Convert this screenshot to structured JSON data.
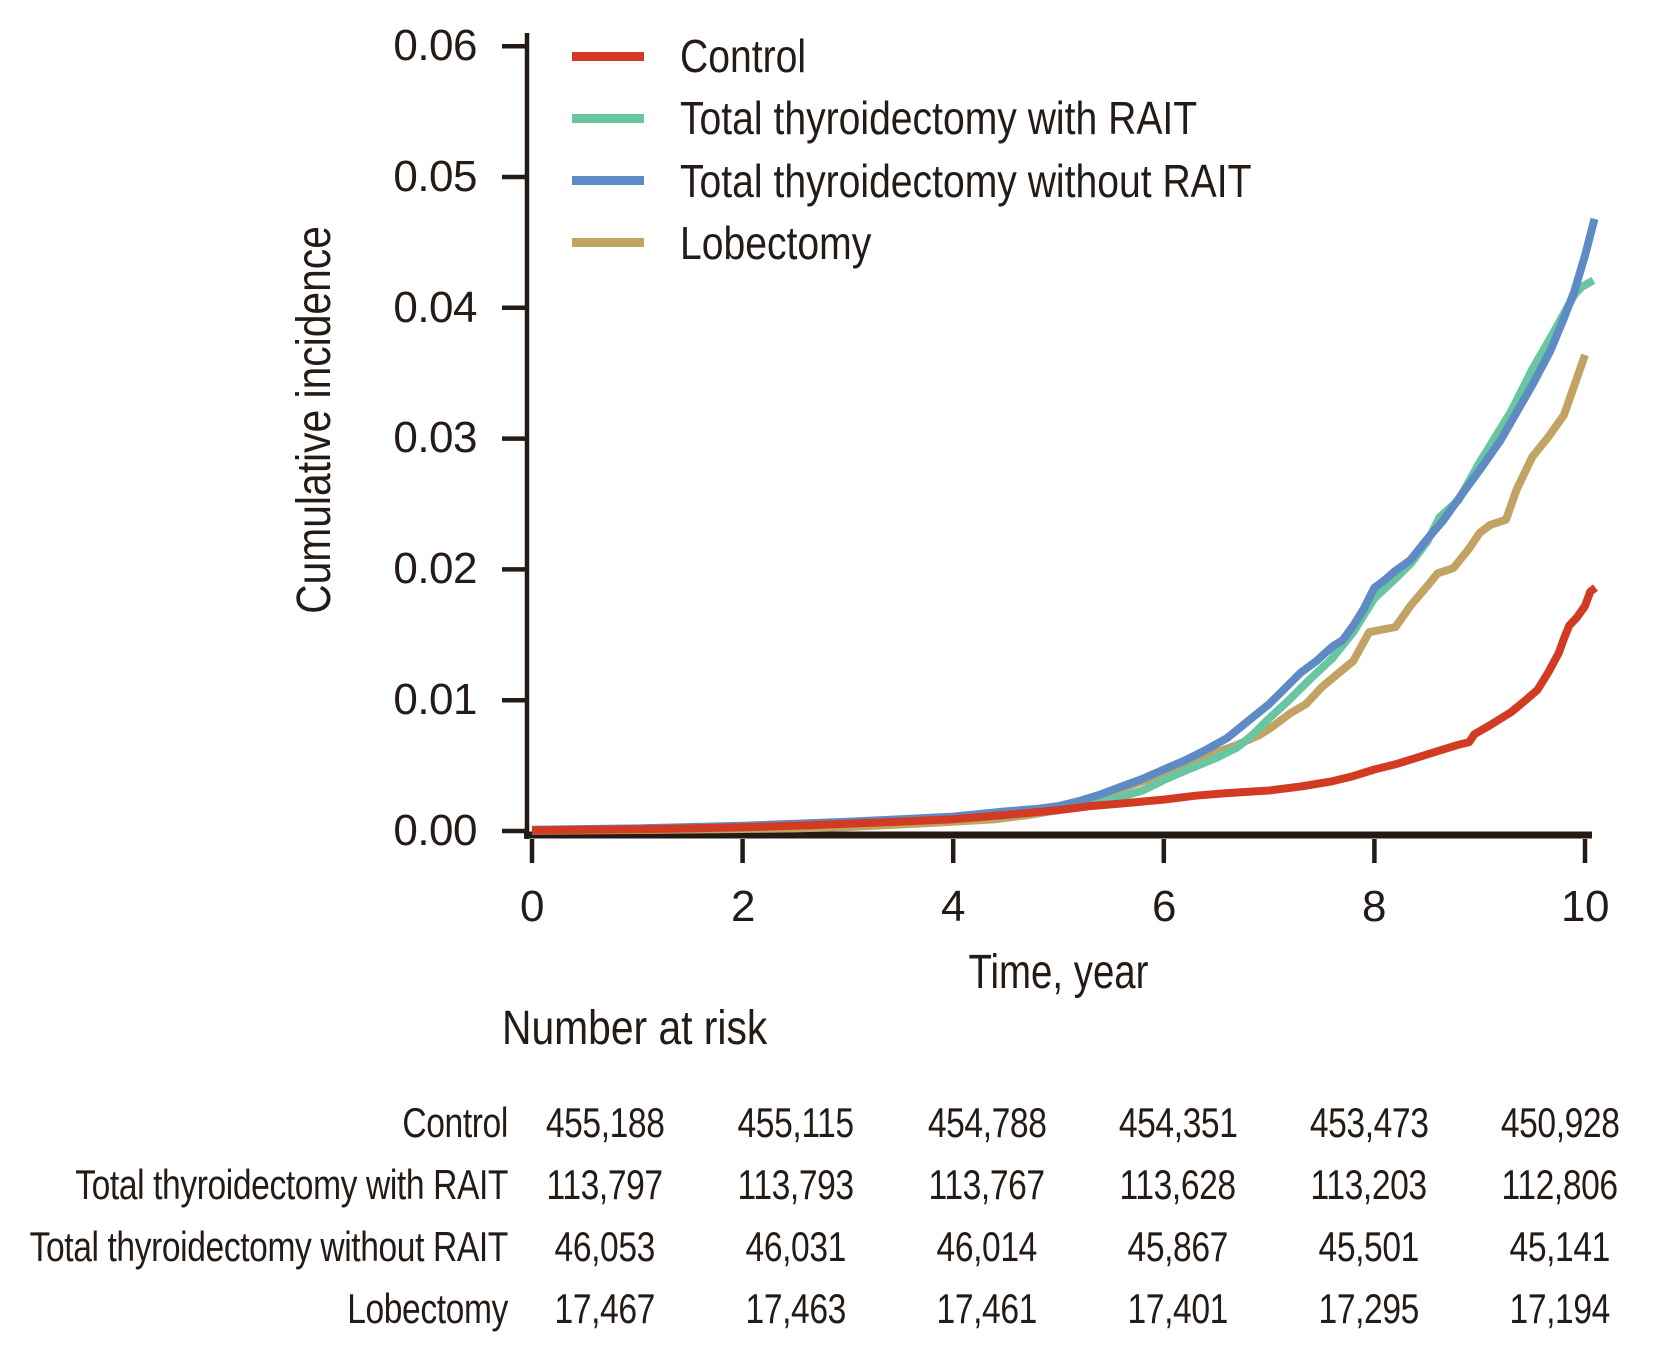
{
  "figure": {
    "ylabel": "Cumulative incidence",
    "xlabel": "Time, year",
    "y_tick_labels": [
      "0.06",
      "0.05",
      "0.04",
      "0.03",
      "0.02",
      "0.01",
      "0.00"
    ],
    "x_tick_labels": [
      "0",
      "2",
      "4",
      "6",
      "8",
      "10"
    ],
    "text_color": "#241b16",
    "background_color": "#ffffff"
  },
  "legend": {
    "items": [
      {
        "label": "Control"
      },
      {
        "label": "Total thyroidectomy with RAIT"
      },
      {
        "label": "Total thyroidectomy without RAIT"
      },
      {
        "label": "Lobectomy"
      }
    ]
  },
  "chart_data": {
    "type": "line",
    "title": "",
    "xlabel": "Time, year",
    "ylabel": "Cumulative incidence",
    "xlim": [
      0,
      10.2
    ],
    "ylim": [
      0,
      0.06
    ],
    "x_ticks": [
      0,
      2,
      4,
      6,
      8,
      10
    ],
    "y_ticks": [
      0,
      0.01,
      0.02,
      0.03,
      0.04,
      0.05,
      0.06
    ],
    "grid": false,
    "legend_position": "upper left",
    "draw_order": [
      3,
      1,
      2,
      0
    ],
    "series": [
      {
        "name": "Control",
        "color": "#d23b21",
        "points": [
          [
            0,
            5e-05
          ],
          [
            0.5,
            0.0001
          ],
          [
            1,
            0.00013
          ],
          [
            1.5,
            0.0002
          ],
          [
            2,
            0.00028
          ],
          [
            2.5,
            0.0004
          ],
          [
            3,
            0.00055
          ],
          [
            3.5,
            0.00072
          ],
          [
            4,
            0.0009
          ],
          [
            4.3,
            0.0011
          ],
          [
            4.6,
            0.0013
          ],
          [
            5,
            0.0016
          ],
          [
            5.3,
            0.0019
          ],
          [
            5.6,
            0.0021
          ],
          [
            6,
            0.0024
          ],
          [
            6.3,
            0.0027
          ],
          [
            6.6,
            0.0029
          ],
          [
            7,
            0.0031
          ],
          [
            7.3,
            0.0034
          ],
          [
            7.6,
            0.0038
          ],
          [
            7.8,
            0.0042
          ],
          [
            8,
            0.0047
          ],
          [
            8.2,
            0.0051
          ],
          [
            8.4,
            0.0056
          ],
          [
            8.6,
            0.0061
          ],
          [
            8.8,
            0.0066
          ],
          [
            8.9,
            0.0068
          ],
          [
            8.95,
            0.0074
          ],
          [
            9.1,
            0.0081
          ],
          [
            9.3,
            0.0091
          ],
          [
            9.45,
            0.0101
          ],
          [
            9.55,
            0.0108
          ],
          [
            9.65,
            0.0121
          ],
          [
            9.75,
            0.0136
          ],
          [
            9.8,
            0.0147
          ],
          [
            9.85,
            0.0157
          ],
          [
            9.92,
            0.0163
          ],
          [
            10,
            0.0172
          ],
          [
            10.05,
            0.0183
          ],
          [
            10.1,
            0.0186
          ]
        ]
      },
      {
        "name": "Total thyroidectomy with RAIT",
        "color": "#68c6a1",
        "points": [
          [
            0,
            8e-05
          ],
          [
            1,
            0.00018
          ],
          [
            2,
            0.0003
          ],
          [
            2.5,
            0.00045
          ],
          [
            3,
            0.0006
          ],
          [
            3.5,
            0.00075
          ],
          [
            4,
            0.0009
          ],
          [
            4.5,
            0.0012
          ],
          [
            5,
            0.0016
          ],
          [
            5.2,
            0.0019
          ],
          [
            5.5,
            0.0024
          ],
          [
            5.8,
            0.0031
          ],
          [
            6,
            0.0039
          ],
          [
            6.2,
            0.0046
          ],
          [
            6.5,
            0.0056
          ],
          [
            6.7,
            0.0064
          ],
          [
            6.85,
            0.0074
          ],
          [
            7,
            0.0086
          ],
          [
            7.2,
            0.0101
          ],
          [
            7.4,
            0.0117
          ],
          [
            7.6,
            0.0132
          ],
          [
            7.8,
            0.0152
          ],
          [
            8,
            0.0178
          ],
          [
            8.2,
            0.0193
          ],
          [
            8.35,
            0.0205
          ],
          [
            8.5,
            0.0221
          ],
          [
            8.62,
            0.024
          ],
          [
            8.8,
            0.0253
          ],
          [
            9,
            0.0282
          ],
          [
            9.07,
            0.0291
          ],
          [
            9.3,
            0.0321
          ],
          [
            9.5,
            0.0353
          ],
          [
            9.7,
            0.0381
          ],
          [
            9.83,
            0.04
          ],
          [
            9.9,
            0.041
          ],
          [
            9.97,
            0.0416
          ],
          [
            10.08,
            0.0421
          ]
        ]
      },
      {
        "name": "Total thyroidectomy without RAIT",
        "color": "#5f8bc5",
        "points": [
          [
            0,
            0.0001
          ],
          [
            1,
            0.0002
          ],
          [
            2,
            0.0004
          ],
          [
            2.5,
            0.00055
          ],
          [
            3,
            0.0007
          ],
          [
            3.5,
            0.0009
          ],
          [
            4,
            0.0011
          ],
          [
            4.5,
            0.0015
          ],
          [
            4.8,
            0.0017
          ],
          [
            5,
            0.0019
          ],
          [
            5.2,
            0.0023
          ],
          [
            5.4,
            0.0028
          ],
          [
            5.6,
            0.0034
          ],
          [
            5.8,
            0.004
          ],
          [
            6,
            0.0047
          ],
          [
            6.2,
            0.0054
          ],
          [
            6.4,
            0.0062
          ],
          [
            6.6,
            0.0071
          ],
          [
            6.8,
            0.0084
          ],
          [
            7,
            0.0097
          ],
          [
            7.15,
            0.0109
          ],
          [
            7.3,
            0.0121
          ],
          [
            7.45,
            0.013
          ],
          [
            7.6,
            0.0141
          ],
          [
            7.7,
            0.0146
          ],
          [
            7.8,
            0.0157
          ],
          [
            7.9,
            0.017
          ],
          [
            8,
            0.0186
          ],
          [
            8.1,
            0.0192
          ],
          [
            8.2,
            0.0199
          ],
          [
            8.34,
            0.0207
          ],
          [
            8.5,
            0.0223
          ],
          [
            8.65,
            0.0237
          ],
          [
            8.8,
            0.0254
          ],
          [
            9,
            0.0276
          ],
          [
            9.2,
            0.0299
          ],
          [
            9.35,
            0.032
          ],
          [
            9.5,
            0.0341
          ],
          [
            9.67,
            0.0367
          ],
          [
            9.8,
            0.0392
          ],
          [
            9.9,
            0.0413
          ],
          [
            10,
            0.044
          ],
          [
            10.09,
            0.0468
          ]
        ]
      },
      {
        "name": "Lobectomy",
        "color": "#c3a364",
        "points": [
          [
            0,
            2e-05
          ],
          [
            1,
            8e-05
          ],
          [
            2,
            0.00015
          ],
          [
            2.5,
            0.0002
          ],
          [
            3,
            0.0003
          ],
          [
            3.5,
            0.0005
          ],
          [
            4,
            0.0007
          ],
          [
            4.4,
            0.0009
          ],
          [
            4.7,
            0.0012
          ],
          [
            5,
            0.0016
          ],
          [
            5.2,
            0.0021
          ],
          [
            5.5,
            0.003
          ],
          [
            5.8,
            0.0038
          ],
          [
            6,
            0.0044
          ],
          [
            6.2,
            0.005
          ],
          [
            6.5,
            0.006
          ],
          [
            6.7,
            0.0066
          ],
          [
            6.9,
            0.0073
          ],
          [
            7,
            0.0078
          ],
          [
            7.2,
            0.009
          ],
          [
            7.35,
            0.0097
          ],
          [
            7.5,
            0.011
          ],
          [
            7.65,
            0.012
          ],
          [
            7.8,
            0.013
          ],
          [
            7.95,
            0.0152
          ],
          [
            8.2,
            0.0156
          ],
          [
            8.35,
            0.0173
          ],
          [
            8.5,
            0.0187
          ],
          [
            8.6,
            0.0197
          ],
          [
            8.75,
            0.0201
          ],
          [
            8.9,
            0.0216
          ],
          [
            9,
            0.0228
          ],
          [
            9.1,
            0.0234
          ],
          [
            9.25,
            0.0238
          ],
          [
            9.35,
            0.0261
          ],
          [
            9.5,
            0.0286
          ],
          [
            9.65,
            0.0301
          ],
          [
            9.8,
            0.0318
          ],
          [
            9.9,
            0.0341
          ],
          [
            10,
            0.0364
          ]
        ]
      }
    ]
  },
  "risk_table": {
    "title": "Number at risk",
    "time_points": [
      0,
      2,
      4,
      6,
      8,
      10
    ],
    "rows": [
      {
        "label": "Control",
        "values": [
          "455,188",
          "455,115",
          "454,788",
          "454,351",
          "453,473",
          "450,928"
        ]
      },
      {
        "label": "Total thyroidectomy with RAIT",
        "values": [
          "113,797",
          "113,793",
          "113,767",
          "113,628",
          "113,203",
          "112,806"
        ]
      },
      {
        "label": "Total thyroidectomy without RAIT",
        "values": [
          "46,053",
          "46,031",
          "46,014",
          "45,867",
          "45,501",
          "45,141"
        ]
      },
      {
        "label": "Lobectomy",
        "values": [
          "17,467",
          "17,463",
          "17,461",
          "17,401",
          "17,295",
          "17,194"
        ]
      }
    ]
  }
}
